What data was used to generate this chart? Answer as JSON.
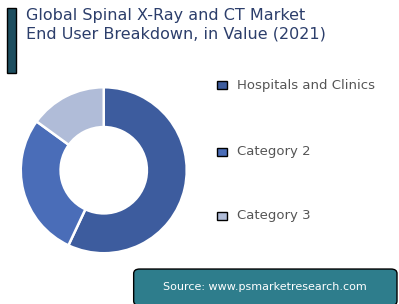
{
  "title_line1": "Global Spinal X-Ray and CT Market",
  "title_line2": "End User Breakdown, in Value (2021)",
  "categories": [
    "Hospitals and Clinics",
    "Category 2",
    "Category 3"
  ],
  "values": [
    57,
    28,
    15
  ],
  "colors": [
    "#3d5c9e",
    "#4a6db8",
    "#b0bcd8"
  ],
  "startangle": 90,
  "bg_color": "#ffffff",
  "title_color": "#2c3e6b",
  "accent_color": "#1d4e5f",
  "legend_colors": [
    "#3d5c9e",
    "#4a6db8",
    "#b0bcd8"
  ],
  "legend_text_color": "#555555",
  "source_text": "Source: www.psmarketresearch.com",
  "source_bg": "#2e7d8c",
  "source_text_color": "#ffffff",
  "title_fontsize": 11.5,
  "legend_fontsize": 9.5,
  "source_fontsize": 8.0
}
